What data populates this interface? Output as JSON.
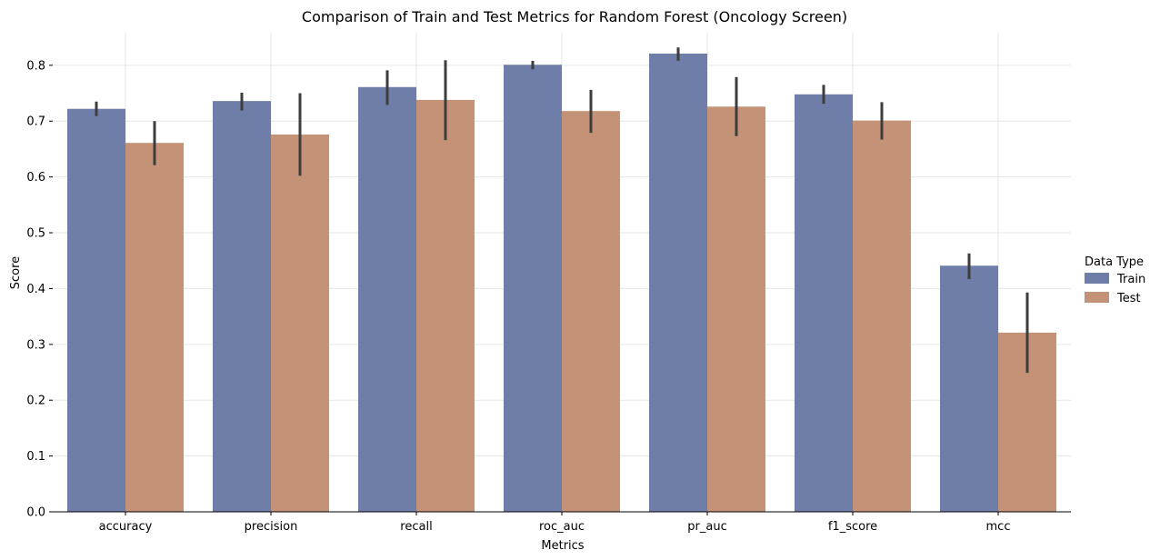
{
  "chart_data": {
    "type": "bar",
    "title": "Comparison of Train and Test Metrics for Random Forest (Oncology Screen)",
    "xlabel": "Metrics",
    "ylabel": "Score",
    "categories": [
      "accuracy",
      "precision",
      "recall",
      "roc_auc",
      "pr_auc",
      "f1_score",
      "mcc"
    ],
    "ylim": [
      0,
      0.86
    ],
    "yticks": [
      0.0,
      0.1,
      0.2,
      0.3,
      0.4,
      0.5,
      0.6,
      0.7,
      0.8
    ],
    "ytick_labels": [
      "0.0",
      "0.1",
      "0.2",
      "0.3",
      "0.4",
      "0.5",
      "0.6",
      "0.7",
      "0.8"
    ],
    "grid": true,
    "legend": {
      "title": "Data Type",
      "placement": "right"
    },
    "series": [
      {
        "name": "Train",
        "color": "#6f7ea8",
        "values": [
          0.722,
          0.736,
          0.761,
          0.801,
          0.821,
          0.748,
          0.441
        ],
        "error_low": [
          0.709,
          0.719,
          0.729,
          0.793,
          0.808,
          0.731,
          0.417
        ],
        "error_high": [
          0.735,
          0.751,
          0.791,
          0.808,
          0.832,
          0.765,
          0.463
        ]
      },
      {
        "name": "Test",
        "color": "#c39277",
        "values": [
          0.661,
          0.676,
          0.738,
          0.718,
          0.726,
          0.701,
          0.321
        ],
        "error_low": [
          0.621,
          0.602,
          0.666,
          0.679,
          0.673,
          0.667,
          0.249
        ],
        "error_high": [
          0.7,
          0.75,
          0.809,
          0.756,
          0.779,
          0.734,
          0.393
        ]
      }
    ]
  }
}
